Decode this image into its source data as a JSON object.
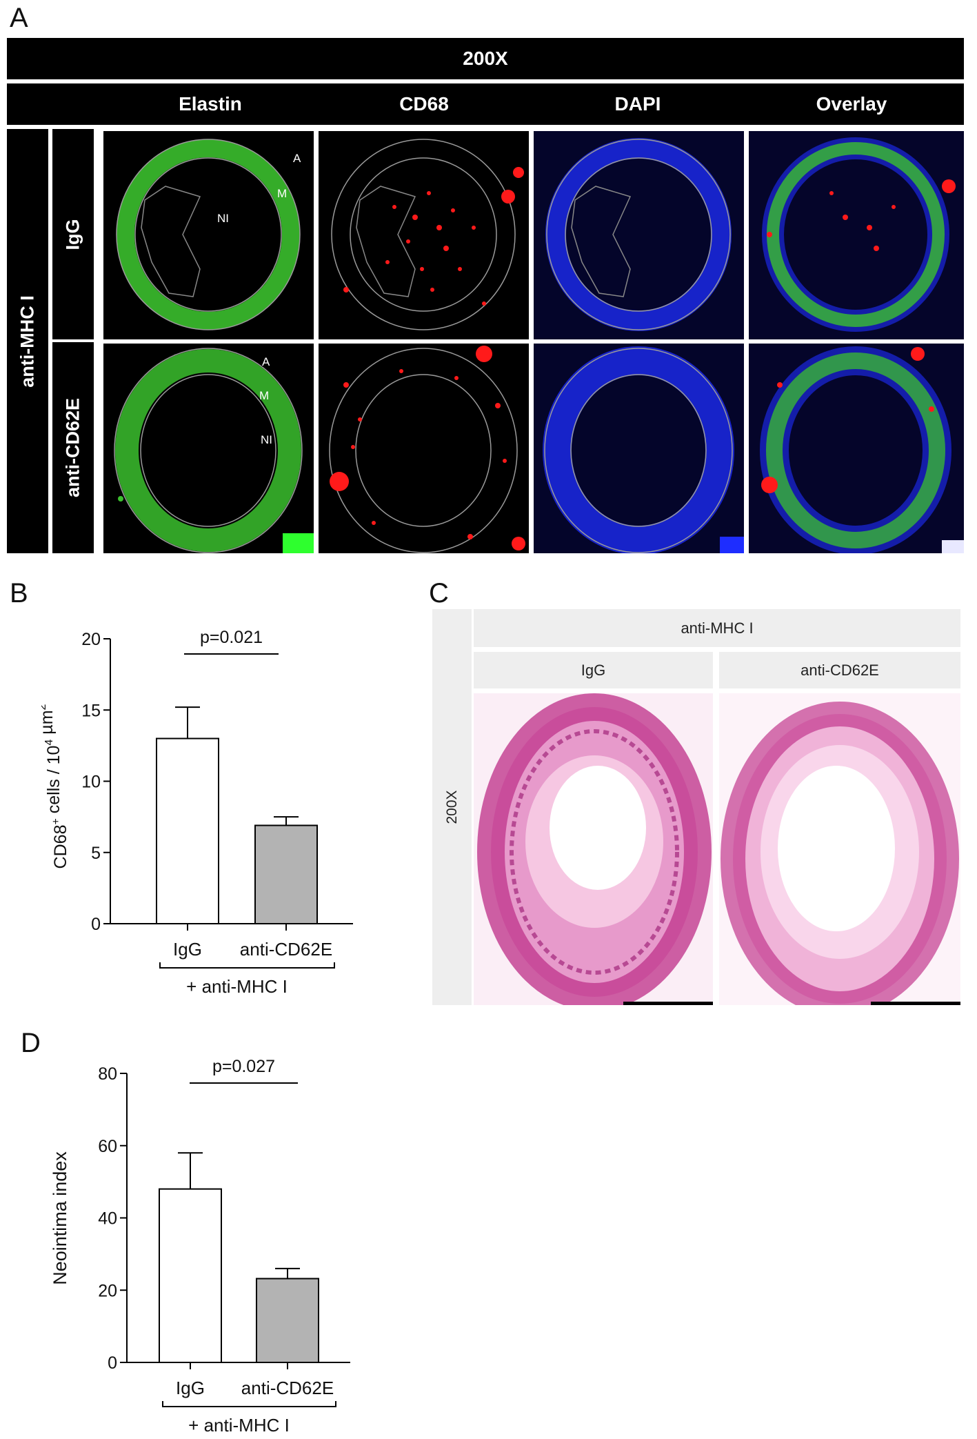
{
  "panel_a": {
    "letter": "A",
    "magnification": "200X",
    "columns": [
      "Elastin",
      "CD68",
      "DAPI",
      "Overlay"
    ],
    "group_label": "anti-MHC I",
    "rows": [
      "IgG",
      "anti-CD62E"
    ],
    "region_labels": {
      "adventitia": "A",
      "media": "M",
      "neointima": "NI"
    }
  },
  "panel_b": {
    "letter": "B"
  },
  "panel_c": {
    "letter": "C",
    "header": "anti-MHC I",
    "columns": [
      "IgG",
      "anti-CD62E"
    ],
    "magnification": "200X"
  },
  "panel_d": {
    "letter": "D"
  },
  "colors": {
    "elastin": "#3bbf2e",
    "cd68": "#ff1a1a",
    "dapi": "#1e2dff",
    "stain": "#c2398f",
    "bar_igg": "#ffffff",
    "bar_cd62e": "#b3b3b3"
  },
  "chart_data": [
    {
      "type": "bar",
      "categories": [
        "IgG",
        "anti-CD62E"
      ],
      "values": [
        13.0,
        6.9
      ],
      "errors": [
        2.2,
        0.6
      ],
      "ylabel": "CD68+ cells / 10^4 µm^2",
      "ylabel_parts": {
        "a": "CD68",
        "b": "+",
        "c": " cells / 10",
        "d": "4",
        "e": " µm",
        "f": "2"
      },
      "ylim": [
        0,
        20
      ],
      "yticks": [
        "0",
        "5",
        "10",
        "15",
        "20"
      ],
      "yticks_values": [
        0,
        5,
        10,
        15,
        20
      ],
      "group_label": "+ anti-MHC I",
      "annotation": "p=0.021"
    },
    {
      "type": "bar",
      "categories": [
        "IgG",
        "anti-CD62E"
      ],
      "values": [
        48,
        23.2
      ],
      "errors": [
        10,
        2.8
      ],
      "ylabel": "Neointima index",
      "ylim": [
        0,
        80
      ],
      "yticks": [
        "0",
        "20",
        "40",
        "60",
        "80"
      ],
      "yticks_values": [
        0,
        20,
        40,
        60,
        80
      ],
      "group_label": "+ anti-MHC I",
      "annotation": "p=0.027"
    }
  ]
}
